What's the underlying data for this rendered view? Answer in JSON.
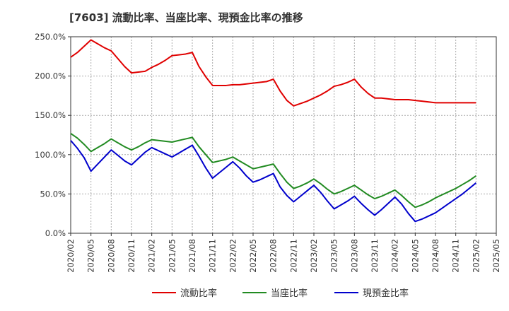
{
  "chart_data": {
    "type": "line",
    "title": "[7603]  流動比率、当座比率、現預金比率の推移",
    "xlabel": "",
    "ylabel": "",
    "ylim": [
      0,
      250
    ],
    "y_ticks": [
      0,
      50,
      100,
      150,
      200,
      250
    ],
    "y_tick_labels": [
      "0.0%",
      "50.0%",
      "100.0%",
      "150.0%",
      "200.0%",
      "250.0%"
    ],
    "x_tick_labels": [
      "2020/02",
      "2020/05",
      "2020/08",
      "2020/11",
      "2021/02",
      "2021/05",
      "2021/08",
      "2021/11",
      "2022/02",
      "2022/05",
      "2022/08",
      "2022/11",
      "2023/02",
      "2023/05",
      "2023/08",
      "2023/11",
      "2024/02",
      "2024/05",
      "2024/08",
      "2024/11",
      "2025/02",
      "2025/05"
    ],
    "x": [
      "2020/02",
      "2020/03",
      "2020/04",
      "2020/05",
      "2020/06",
      "2020/07",
      "2020/08",
      "2020/09",
      "2020/10",
      "2020/11",
      "2020/12",
      "2021/01",
      "2021/02",
      "2021/03",
      "2021/04",
      "2021/05",
      "2021/06",
      "2021/07",
      "2021/08",
      "2021/09",
      "2021/10",
      "2021/11",
      "2021/12",
      "2022/01",
      "2022/02",
      "2022/03",
      "2022/04",
      "2022/05",
      "2022/06",
      "2022/07",
      "2022/08",
      "2022/09",
      "2022/10",
      "2022/11",
      "2022/12",
      "2023/01",
      "2023/02",
      "2023/03",
      "2023/04",
      "2023/05",
      "2023/06",
      "2023/07",
      "2023/08",
      "2023/09",
      "2023/10",
      "2023/11",
      "2023/12",
      "2024/01",
      "2024/02",
      "2024/03",
      "2024/04",
      "2024/05",
      "2024/06",
      "2024/07",
      "2024/08",
      "2024/09",
      "2024/10",
      "2024/11",
      "2024/12",
      "2025/01",
      "2025/02"
    ],
    "series": [
      {
        "name": "流動比率",
        "color": "#e00000",
        "values": [
          224,
          230,
          238,
          246,
          241,
          236,
          232,
          222,
          212,
          204,
          205,
          206,
          211,
          215,
          220,
          226,
          227,
          228,
          230,
          212,
          199,
          188,
          188,
          188,
          189,
          189,
          190,
          191,
          192,
          193,
          196,
          181,
          169,
          162,
          165,
          168,
          172,
          176,
          181,
          187,
          189,
          192,
          196,
          186,
          178,
          172,
          172,
          171,
          170,
          170,
          170,
          169,
          168,
          167,
          166,
          166,
          166,
          166,
          166,
          166,
          166
        ]
      },
      {
        "name": "当座比率",
        "color": "#228b22",
        "values": [
          127,
          121,
          113,
          104,
          109,
          114,
          120,
          115,
          110,
          106,
          110,
          115,
          119,
          118,
          117,
          116,
          118,
          120,
          122,
          110,
          100,
          90,
          92,
          94,
          97,
          92,
          87,
          82,
          84,
          86,
          88,
          76,
          65,
          57,
          60,
          64,
          69,
          63,
          56,
          50,
          53,
          57,
          61,
          55,
          49,
          44,
          47,
          51,
          55,
          48,
          40,
          33,
          36,
          40,
          45,
          49,
          53,
          57,
          62,
          67,
          73
        ]
      },
      {
        "name": "現預金比率",
        "color": "#0000cc",
        "values": [
          118,
          108,
          96,
          79,
          88,
          97,
          106,
          99,
          92,
          87,
          95,
          103,
          109,
          105,
          101,
          97,
          102,
          107,
          112,
          98,
          83,
          70,
          77,
          84,
          91,
          83,
          73,
          65,
          68,
          72,
          76,
          59,
          48,
          40,
          47,
          54,
          61,
          52,
          41,
          31,
          36,
          41,
          47,
          38,
          30,
          23,
          30,
          38,
          46,
          37,
          25,
          15,
          18,
          22,
          26,
          32,
          38,
          44,
          50,
          57,
          64
        ]
      }
    ],
    "legend_position": "bottom",
    "grid": true
  }
}
